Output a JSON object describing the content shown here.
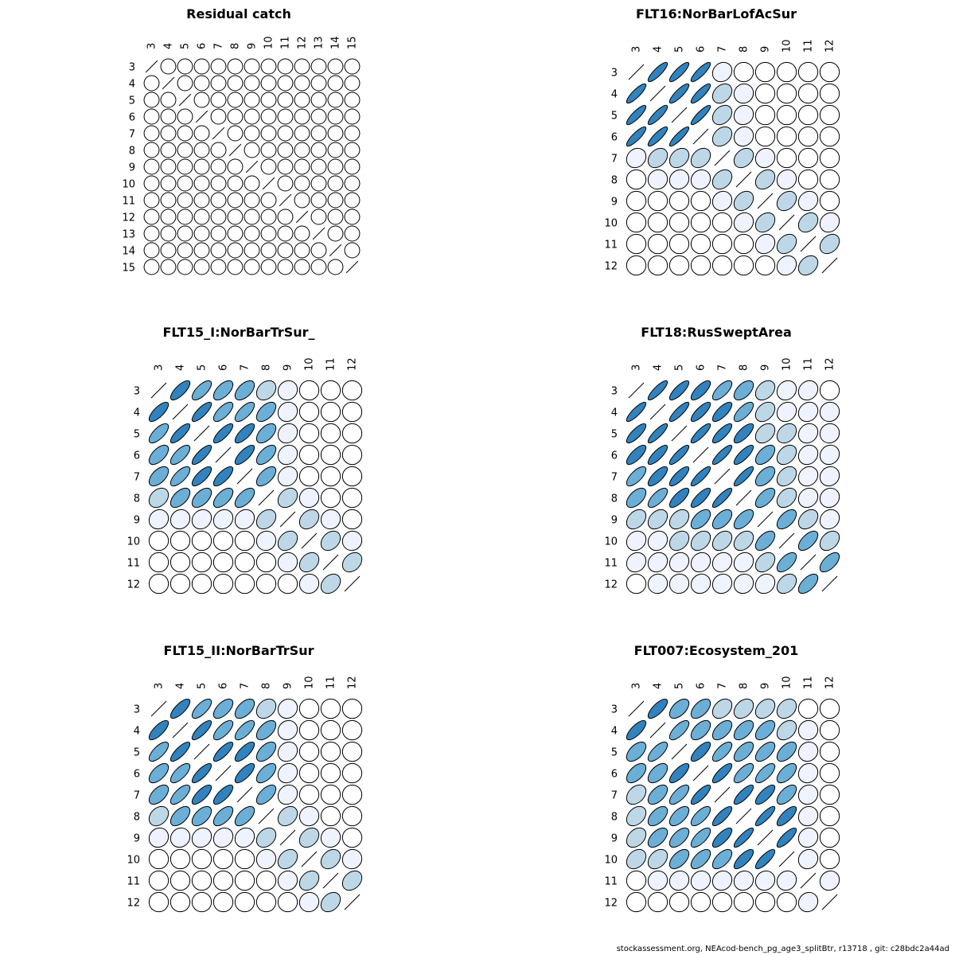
{
  "footer": "stockassessment.org, NEAcod-bench_pg_age3_splitBtr, r13718 , git: c28bdc2a44ad",
  "palette": [
    "#ffffff",
    "#eff3ff",
    "#bdd7e7",
    "#6baed6",
    "#3182bd"
  ],
  "chart_data": [
    {
      "type": "correlation-ellipse-matrix",
      "title": "Residual catch",
      "labels": [
        "3",
        "4",
        "5",
        "6",
        "7",
        "8",
        "9",
        "10",
        "11",
        "12",
        "13",
        "14",
        "15"
      ],
      "correlations": [
        [
          1,
          0,
          0,
          0,
          0,
          0,
          0,
          0,
          0,
          0,
          0,
          0,
          0
        ],
        [
          0,
          1,
          0,
          0,
          0,
          0,
          0,
          0,
          0,
          0,
          0,
          0,
          0
        ],
        [
          0,
          0,
          1,
          0,
          0,
          0,
          0,
          0,
          0,
          0,
          0,
          0,
          0
        ],
        [
          0,
          0,
          0,
          1,
          0,
          0,
          0,
          0,
          0,
          0,
          0,
          0,
          0
        ],
        [
          0,
          0,
          0,
          0,
          1,
          0,
          0,
          0,
          0,
          0,
          0,
          0,
          0
        ],
        [
          0,
          0,
          0,
          0,
          0,
          1,
          0,
          0,
          0,
          0,
          0,
          0,
          0
        ],
        [
          0,
          0,
          0,
          0,
          0,
          0,
          1,
          0,
          0,
          0,
          0,
          0,
          0
        ],
        [
          0,
          0,
          0,
          0,
          0,
          0,
          0,
          1,
          0,
          0,
          0,
          0,
          0
        ],
        [
          0,
          0,
          0,
          0,
          0,
          0,
          0,
          0,
          1,
          0,
          0,
          0,
          0
        ],
        [
          0,
          0,
          0,
          0,
          0,
          0,
          0,
          0,
          0,
          1,
          0,
          0,
          0
        ],
        [
          0,
          0,
          0,
          0,
          0,
          0,
          0,
          0,
          0,
          0,
          1,
          0,
          0
        ],
        [
          0,
          0,
          0,
          0,
          0,
          0,
          0,
          0,
          0,
          0,
          0,
          1,
          0
        ],
        [
          0,
          0,
          0,
          0,
          0,
          0,
          0,
          0,
          0,
          0,
          0,
          0,
          1
        ]
      ]
    },
    {
      "type": "correlation-ellipse-matrix",
      "title": "FLT16:NorBarLofAcSur",
      "labels": [
        "3",
        "4",
        "5",
        "6",
        "7",
        "8",
        "9",
        "10",
        "11",
        "12"
      ],
      "correlations": [
        [
          1,
          0.85,
          0.85,
          0.85,
          0.15,
          0,
          0,
          0,
          0,
          0
        ],
        [
          0.85,
          1,
          0.85,
          0.85,
          0.3,
          0.05,
          0,
          0,
          0,
          0
        ],
        [
          0.85,
          0.85,
          1,
          0.88,
          0.3,
          0.1,
          0,
          0,
          0,
          0
        ],
        [
          0.85,
          0.85,
          0.88,
          1,
          0.3,
          0.1,
          0,
          0,
          0,
          0
        ],
        [
          0.15,
          0.3,
          0.3,
          0.3,
          1,
          0.3,
          0.1,
          0,
          0,
          0
        ],
        [
          0,
          0.05,
          0.1,
          0.1,
          0.3,
          1,
          0.3,
          0.1,
          0,
          0
        ],
        [
          0,
          0,
          0,
          0,
          0.1,
          0.3,
          1,
          0.3,
          0.15,
          0
        ],
        [
          0,
          0,
          0,
          0,
          0,
          0.1,
          0.3,
          1,
          0.3,
          0.15
        ],
        [
          0,
          0,
          0,
          0,
          0,
          0,
          0.15,
          0.3,
          1,
          0.3
        ],
        [
          0,
          0,
          0,
          0,
          0,
          0,
          0,
          0.15,
          0.3,
          1
        ]
      ]
    },
    {
      "type": "correlation-ellipse-matrix",
      "title": "FLT15_I:NorBarTrSur_",
      "labels": [
        "3",
        "4",
        "5",
        "6",
        "7",
        "8",
        "9",
        "10",
        "11",
        "12"
      ],
      "correlations": [
        [
          1,
          0.75,
          0.7,
          0.6,
          0.55,
          0.3,
          0.1,
          0,
          0,
          0
        ],
        [
          0.75,
          1,
          0.8,
          0.7,
          0.7,
          0.55,
          0.1,
          0,
          0,
          0
        ],
        [
          0.7,
          0.8,
          1,
          0.8,
          0.75,
          0.55,
          0.15,
          0,
          0,
          0
        ],
        [
          0.6,
          0.7,
          0.8,
          1,
          0.75,
          0.6,
          0.15,
          0,
          0,
          0
        ],
        [
          0.55,
          0.7,
          0.75,
          0.75,
          1,
          0.6,
          0.15,
          0,
          0,
          0
        ],
        [
          0.3,
          0.55,
          0.55,
          0.6,
          0.6,
          1,
          0.3,
          0.05,
          0,
          0
        ],
        [
          0.1,
          0.1,
          0.15,
          0.15,
          0.15,
          0.3,
          1,
          0.3,
          0.05,
          0
        ],
        [
          0,
          0,
          0,
          0,
          0,
          0.05,
          0.3,
          1,
          0.3,
          0.05
        ],
        [
          0,
          0,
          0,
          0,
          0,
          0,
          0.05,
          0.3,
          1,
          0.3
        ],
        [
          0,
          0,
          0,
          0,
          0,
          0,
          0,
          0.05,
          0.3,
          1
        ]
      ]
    },
    {
      "type": "correlation-ellipse-matrix",
      "title": "FLT18:RusSweptArea",
      "labels": [
        "3",
        "4",
        "5",
        "6",
        "7",
        "8",
        "9",
        "10",
        "11",
        "12"
      ],
      "correlations": [
        [
          1,
          0.85,
          0.8,
          0.75,
          0.7,
          0.55,
          0.35,
          0.15,
          0.15,
          0
        ],
        [
          0.85,
          1,
          0.85,
          0.8,
          0.75,
          0.7,
          0.35,
          0.15,
          0.15,
          0.05
        ],
        [
          0.8,
          0.85,
          1,
          0.85,
          0.8,
          0.75,
          0.35,
          0.3,
          0.15,
          0.05
        ],
        [
          0.75,
          0.8,
          0.85,
          1,
          0.85,
          0.8,
          0.55,
          0.35,
          0.15,
          0.1
        ],
        [
          0.7,
          0.75,
          0.8,
          0.85,
          1,
          0.85,
          0.55,
          0.35,
          0.15,
          0.1
        ],
        [
          0.55,
          0.7,
          0.75,
          0.8,
          0.85,
          1,
          0.6,
          0.35,
          0.15,
          0.1
        ],
        [
          0.35,
          0.35,
          0.35,
          0.55,
          0.55,
          0.6,
          1,
          0.55,
          0.35,
          0.15
        ],
        [
          0.15,
          0.15,
          0.3,
          0.35,
          0.35,
          0.35,
          0.55,
          1,
          0.6,
          0.35
        ],
        [
          0.15,
          0.15,
          0.15,
          0.15,
          0.15,
          0.15,
          0.35,
          0.6,
          1,
          0.6
        ],
        [
          0,
          0.05,
          0.05,
          0.1,
          0.1,
          0.1,
          0.15,
          0.35,
          0.6,
          1
        ]
      ]
    },
    {
      "type": "correlation-ellipse-matrix",
      "title": "FLT15_II:NorBarTrSur",
      "labels": [
        "3",
        "4",
        "5",
        "6",
        "7",
        "8",
        "9",
        "10",
        "11",
        "12"
      ],
      "correlations": [
        [
          1,
          0.75,
          0.7,
          0.6,
          0.55,
          0.3,
          0.1,
          0,
          0,
          0
        ],
        [
          0.75,
          1,
          0.8,
          0.7,
          0.7,
          0.55,
          0.1,
          0,
          0,
          0
        ],
        [
          0.7,
          0.8,
          1,
          0.8,
          0.75,
          0.55,
          0.15,
          0,
          0,
          0
        ],
        [
          0.6,
          0.7,
          0.8,
          1,
          0.75,
          0.6,
          0.15,
          0,
          0,
          0
        ],
        [
          0.55,
          0.7,
          0.75,
          0.75,
          1,
          0.6,
          0.15,
          0,
          0,
          0
        ],
        [
          0.3,
          0.55,
          0.55,
          0.6,
          0.6,
          1,
          0.3,
          0.05,
          0,
          0
        ],
        [
          0.1,
          0.1,
          0.15,
          0.15,
          0.15,
          0.3,
          1,
          0.3,
          0.05,
          0
        ],
        [
          0,
          0,
          0,
          0,
          0,
          0.05,
          0.3,
          1,
          0.3,
          0.05
        ],
        [
          0,
          0,
          0,
          0,
          0,
          0,
          0.05,
          0.3,
          1,
          0.3
        ],
        [
          0,
          0,
          0,
          0,
          0,
          0,
          0,
          0.05,
          0.3,
          1
        ]
      ]
    },
    {
      "type": "correlation-ellipse-matrix",
      "title": "FLT007:Ecosystem_201",
      "labels": [
        "3",
        "4",
        "5",
        "6",
        "7",
        "8",
        "9",
        "10",
        "11",
        "12"
      ],
      "correlations": [
        [
          1,
          0.75,
          0.55,
          0.55,
          0.35,
          0.35,
          0.35,
          0.3,
          0,
          0
        ],
        [
          0.75,
          1,
          0.7,
          0.55,
          0.55,
          0.55,
          0.55,
          0.35,
          0.05,
          0
        ],
        [
          0.55,
          0.7,
          1,
          0.75,
          0.7,
          0.6,
          0.6,
          0.55,
          0.1,
          0
        ],
        [
          0.55,
          0.55,
          0.75,
          1,
          0.8,
          0.7,
          0.7,
          0.6,
          0.1,
          0
        ],
        [
          0.35,
          0.55,
          0.7,
          0.8,
          1,
          0.8,
          0.75,
          0.6,
          0.1,
          0
        ],
        [
          0.35,
          0.55,
          0.6,
          0.7,
          0.8,
          1,
          0.85,
          0.75,
          0.1,
          0
        ],
        [
          0.35,
          0.55,
          0.6,
          0.7,
          0.75,
          0.85,
          1,
          0.8,
          0.1,
          0
        ],
        [
          0.3,
          0.35,
          0.55,
          0.6,
          0.6,
          0.75,
          0.8,
          1,
          0.1,
          0
        ],
        [
          0,
          0.05,
          0.1,
          0.1,
          0.1,
          0.1,
          0.1,
          0.1,
          1,
          0.1
        ],
        [
          0,
          0,
          0,
          0,
          0,
          0,
          0,
          0,
          0.1,
          1
        ]
      ]
    }
  ]
}
